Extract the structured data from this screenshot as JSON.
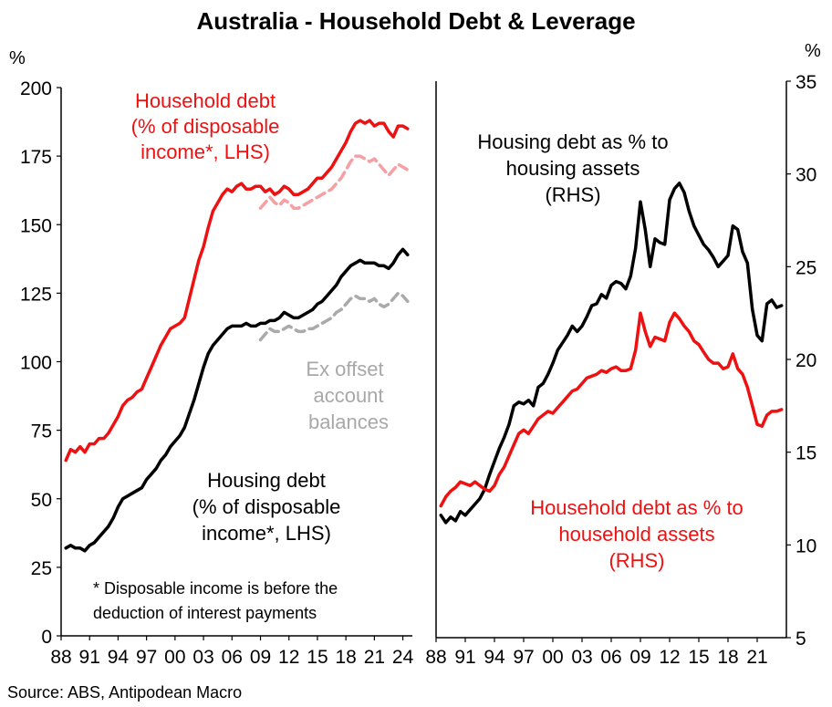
{
  "chart_data": {
    "type": "line",
    "title": "Australia - Household Debt & Leverage",
    "source": "Source: ABS, Antipodean Macro",
    "left_panel": {
      "y_unit": "%",
      "ylim": [
        0,
        200
      ],
      "y_ticks": [
        0,
        25,
        50,
        75,
        100,
        125,
        150,
        175,
        200
      ],
      "x_range": [
        1988,
        2025
      ],
      "x_ticks": [
        {
          "year": 1988,
          "label": "88"
        },
        {
          "year": 1991,
          "label": "91"
        },
        {
          "year": 1994,
          "label": "94"
        },
        {
          "year": 1997,
          "label": "97"
        },
        {
          "year": 2000,
          "label": "00"
        },
        {
          "year": 2003,
          "label": "03"
        },
        {
          "year": 2006,
          "label": "06"
        },
        {
          "year": 2009,
          "label": "09"
        },
        {
          "year": 2012,
          "label": "12"
        },
        {
          "year": 2015,
          "label": "15"
        },
        {
          "year": 2018,
          "label": "18"
        },
        {
          "year": 2021,
          "label": "21"
        },
        {
          "year": 2024,
          "label": "24"
        }
      ],
      "labels": {
        "household_debt": [
          "Household debt",
          "(% of disposable",
          "income*, LHS)"
        ],
        "housing_debt": [
          "Housing debt",
          "(% of disposable",
          "income*, LHS)"
        ],
        "ex_offset": [
          "Ex offset",
          "account",
          "balances"
        ],
        "footnote": [
          "* Disposable income is before the",
          "deduction of interest payments"
        ]
      },
      "series": [
        {
          "name": "Household debt",
          "color": "#ee1111",
          "style": "solid",
          "x": [
            1988.5,
            1989,
            1989.5,
            1990,
            1990.5,
            1991,
            1991.5,
            1992,
            1992.5,
            1993,
            1993.5,
            1994,
            1994.5,
            1995,
            1995.5,
            1996,
            1996.5,
            1997,
            1997.5,
            1998,
            1998.5,
            1999,
            1999.5,
            2000,
            2000.5,
            2001,
            2001.5,
            2002,
            2002.5,
            2003,
            2003.5,
            2004,
            2004.5,
            2005,
            2005.5,
            2006,
            2006.5,
            2007,
            2007.5,
            2008,
            2008.5,
            2009,
            2009.5,
            2010,
            2010.5,
            2011,
            2011.5,
            2012,
            2012.5,
            2013,
            2013.5,
            2014,
            2014.5,
            2015,
            2015.5,
            2016,
            2016.5,
            2017,
            2017.5,
            2018,
            2018.5,
            2019,
            2019.5,
            2020,
            2020.5,
            2021,
            2021.5,
            2022,
            2022.5,
            2023,
            2023.5,
            2024,
            2024.5
          ],
          "values": [
            64,
            68,
            67,
            69,
            67,
            70,
            70,
            72,
            72,
            74,
            77,
            80,
            84,
            86,
            87,
            89,
            90,
            94,
            98,
            102,
            106,
            109,
            112,
            113,
            114,
            116,
            123,
            130,
            137,
            142,
            149,
            155,
            158,
            161,
            163,
            162,
            164,
            165,
            163,
            163,
            164,
            164,
            162,
            163,
            161,
            162,
            164,
            163,
            161,
            161,
            162,
            163,
            165,
            167,
            167,
            169,
            171,
            174,
            177,
            180,
            184,
            187,
            188,
            187,
            188,
            186,
            187,
            187,
            184,
            182,
            186,
            186,
            185
          ]
        },
        {
          "name": "Household debt ex offset",
          "color": "#f4a0a4",
          "style": "dashed",
          "x": [
            2009,
            2009.5,
            2010,
            2010.5,
            2011,
            2011.5,
            2012,
            2012.5,
            2013,
            2013.5,
            2014,
            2014.5,
            2015,
            2015.5,
            2016,
            2016.5,
            2017,
            2017.5,
            2018,
            2018.5,
            2019,
            2019.5,
            2020,
            2020.5,
            2021,
            2021.5,
            2022,
            2022.5,
            2023,
            2023.5,
            2024,
            2024.5
          ],
          "values": [
            156,
            158,
            160,
            158,
            157,
            159,
            158,
            156,
            156,
            157,
            158,
            159,
            160,
            161,
            162,
            163,
            165,
            167,
            170,
            173,
            175,
            175,
            174,
            173,
            174,
            172,
            170,
            168,
            170,
            172,
            171,
            170
          ]
        },
        {
          "name": "Housing debt",
          "color": "#000000",
          "style": "solid",
          "x": [
            1988.5,
            1989,
            1989.5,
            1990,
            1990.5,
            1991,
            1991.5,
            1992,
            1992.5,
            1993,
            1993.5,
            1994,
            1994.5,
            1995,
            1995.5,
            1996,
            1996.5,
            1997,
            1997.5,
            1998,
            1998.5,
            1999,
            1999.5,
            2000,
            2000.5,
            2001,
            2001.5,
            2002,
            2002.5,
            2003,
            2003.5,
            2004,
            2004.5,
            2005,
            2005.5,
            2006,
            2006.5,
            2007,
            2007.5,
            2008,
            2008.5,
            2009,
            2009.5,
            2010,
            2010.5,
            2011,
            2011.5,
            2012,
            2012.5,
            2013,
            2013.5,
            2014,
            2014.5,
            2015,
            2015.5,
            2016,
            2016.5,
            2017,
            2017.5,
            2018,
            2018.5,
            2019,
            2019.5,
            2020,
            2020.5,
            2021,
            2021.5,
            2022,
            2022.5,
            2023,
            2023.5,
            2024,
            2024.5
          ],
          "values": [
            32,
            33,
            32,
            32,
            31,
            33,
            34,
            36,
            38,
            40,
            43,
            47,
            50,
            51,
            52,
            53,
            54,
            57,
            59,
            61,
            64,
            66,
            69,
            71,
            73,
            76,
            81,
            86,
            92,
            98,
            103,
            106,
            108,
            110,
            112,
            113,
            113,
            113,
            114,
            113,
            113,
            114,
            114,
            115,
            115,
            116,
            118,
            117,
            116,
            116,
            117,
            118,
            119,
            121,
            122,
            124,
            126,
            128,
            131,
            133,
            135,
            136,
            137,
            136,
            136,
            136,
            135,
            135,
            134,
            136,
            139,
            141,
            139
          ]
        },
        {
          "name": "Housing debt ex offset",
          "color": "#aaaaaa",
          "style": "dashed",
          "x": [
            2009,
            2009.5,
            2010,
            2010.5,
            2011,
            2011.5,
            2012,
            2012.5,
            2013,
            2013.5,
            2014,
            2014.5,
            2015,
            2015.5,
            2016,
            2016.5,
            2017,
            2017.5,
            2018,
            2018.5,
            2019,
            2019.5,
            2020,
            2020.5,
            2021,
            2021.5,
            2022,
            2022.5,
            2023,
            2023.5,
            2024,
            2024.5
          ],
          "values": [
            108,
            110,
            112,
            111,
            111,
            112,
            113,
            112,
            111,
            111,
            112,
            112,
            113,
            114,
            115,
            116,
            118,
            119,
            121,
            123,
            124,
            123,
            123,
            122,
            123,
            121,
            120,
            121,
            123,
            125,
            124,
            122
          ]
        }
      ]
    },
    "right_panel": {
      "y_unit": "%",
      "ylim": [
        5,
        35
      ],
      "y_ticks": [
        5,
        10,
        15,
        20,
        25,
        30,
        35
      ],
      "x_range": [
        1988,
        2024
      ],
      "x_ticks": [
        {
          "year": 1988,
          "label": "88"
        },
        {
          "year": 1991,
          "label": "91"
        },
        {
          "year": 1994,
          "label": "94"
        },
        {
          "year": 1997,
          "label": "97"
        },
        {
          "year": 2000,
          "label": "00"
        },
        {
          "year": 2003,
          "label": "03"
        },
        {
          "year": 2006,
          "label": "06"
        },
        {
          "year": 2009,
          "label": "09"
        },
        {
          "year": 2012,
          "label": "12"
        },
        {
          "year": 2015,
          "label": "15"
        },
        {
          "year": 2018,
          "label": "18"
        },
        {
          "year": 2021,
          "label": "21"
        }
      ],
      "labels": {
        "housing_ratio": [
          "Housing debt as % to",
          "housing assets",
          "(RHS)"
        ],
        "household_ratio": [
          "Household debt as % to",
          "household assets",
          "(RHS)"
        ]
      },
      "series": [
        {
          "name": "Housing debt as % to housing assets",
          "color": "#000000",
          "style": "solid",
          "x": [
            1988.5,
            1989,
            1989.5,
            1990,
            1990.5,
            1991,
            1991.5,
            1992,
            1992.5,
            1993,
            1993.5,
            1994,
            1994.5,
            1995,
            1995.5,
            1996,
            1996.5,
            1997,
            1997.5,
            1998,
            1998.5,
            1999,
            1999.5,
            2000,
            2000.5,
            2001,
            2001.5,
            2002,
            2002.5,
            2003,
            2003.5,
            2004,
            2004.5,
            2005,
            2005.5,
            2006,
            2006.5,
            2007,
            2007.5,
            2008,
            2008.5,
            2009,
            2009.5,
            2010,
            2010.5,
            2011,
            2011.5,
            2012,
            2012.5,
            2013,
            2013.5,
            2014,
            2014.5,
            2015,
            2015.5,
            2016,
            2016.5,
            2017,
            2017.5,
            2018,
            2018.5,
            2019,
            2019.5,
            2020,
            2020.5,
            2021,
            2021.5,
            2022,
            2022.5,
            2023,
            2023.5
          ],
          "values": [
            11.6,
            11.2,
            11.5,
            11.3,
            11.8,
            11.6,
            11.9,
            12.2,
            12.5,
            13.0,
            13.8,
            14.5,
            15.2,
            15.8,
            16.5,
            17.5,
            17.7,
            17.6,
            17.8,
            17.5,
            18.5,
            18.7,
            19.2,
            19.8,
            20.5,
            20.9,
            21.3,
            21.8,
            21.5,
            21.8,
            22.3,
            22.9,
            23.0,
            23.5,
            23.3,
            24.0,
            24.2,
            24.1,
            23.8,
            24.5,
            26.0,
            28.5,
            27.0,
            25.0,
            26.5,
            26.3,
            26.2,
            28.6,
            29.2,
            29.5,
            29.0,
            28.0,
            27.2,
            26.7,
            26.2,
            25.9,
            25.5,
            25.0,
            25.3,
            25.6,
            27.2,
            27.0,
            25.8,
            25.2,
            22.7,
            21.3,
            21.0,
            23.0,
            23.2,
            22.8,
            22.9
          ]
        },
        {
          "name": "Household debt as % to household assets",
          "color": "#ee1111",
          "style": "solid",
          "x": [
            1988.5,
            1989,
            1989.5,
            1990,
            1990.5,
            1991,
            1991.5,
            1992,
            1992.5,
            1993,
            1993.5,
            1994,
            1994.5,
            1995,
            1995.5,
            1996,
            1996.5,
            1997,
            1997.5,
            1998,
            1998.5,
            1999,
            1999.5,
            2000,
            2000.5,
            2001,
            2001.5,
            2002,
            2002.5,
            2003,
            2003.5,
            2004,
            2004.5,
            2005,
            2005.5,
            2006,
            2006.5,
            2007,
            2007.5,
            2008,
            2008.5,
            2009,
            2009.5,
            2010,
            2010.5,
            2011,
            2011.5,
            2012,
            2012.5,
            2013,
            2013.5,
            2014,
            2014.5,
            2015,
            2015.5,
            2016,
            2016.5,
            2017,
            2017.5,
            2018,
            2018.5,
            2019,
            2019.5,
            2020,
            2020.5,
            2021,
            2021.5,
            2022,
            2022.5,
            2023,
            2023.5
          ],
          "values": [
            12.1,
            12.6,
            12.9,
            13.1,
            13.4,
            13.3,
            13.2,
            13.4,
            13.2,
            13.0,
            12.9,
            13.2,
            13.8,
            14.2,
            14.8,
            15.4,
            16.0,
            16.2,
            16.0,
            16.4,
            16.8,
            17.0,
            17.2,
            17.1,
            17.4,
            17.7,
            18.0,
            18.3,
            18.4,
            18.7,
            19.0,
            19.1,
            19.2,
            19.4,
            19.3,
            19.5,
            19.6,
            19.4,
            19.4,
            19.5,
            20.5,
            22.5,
            21.5,
            20.7,
            21.2,
            21.1,
            21.0,
            22.0,
            22.5,
            22.2,
            21.8,
            21.5,
            21.0,
            20.8,
            20.4,
            20.0,
            19.8,
            19.8,
            19.5,
            19.6,
            20.3,
            19.5,
            19.2,
            18.5,
            17.5,
            16.5,
            16.4,
            17.0,
            17.2,
            17.2,
            17.3
          ]
        }
      ]
    }
  }
}
